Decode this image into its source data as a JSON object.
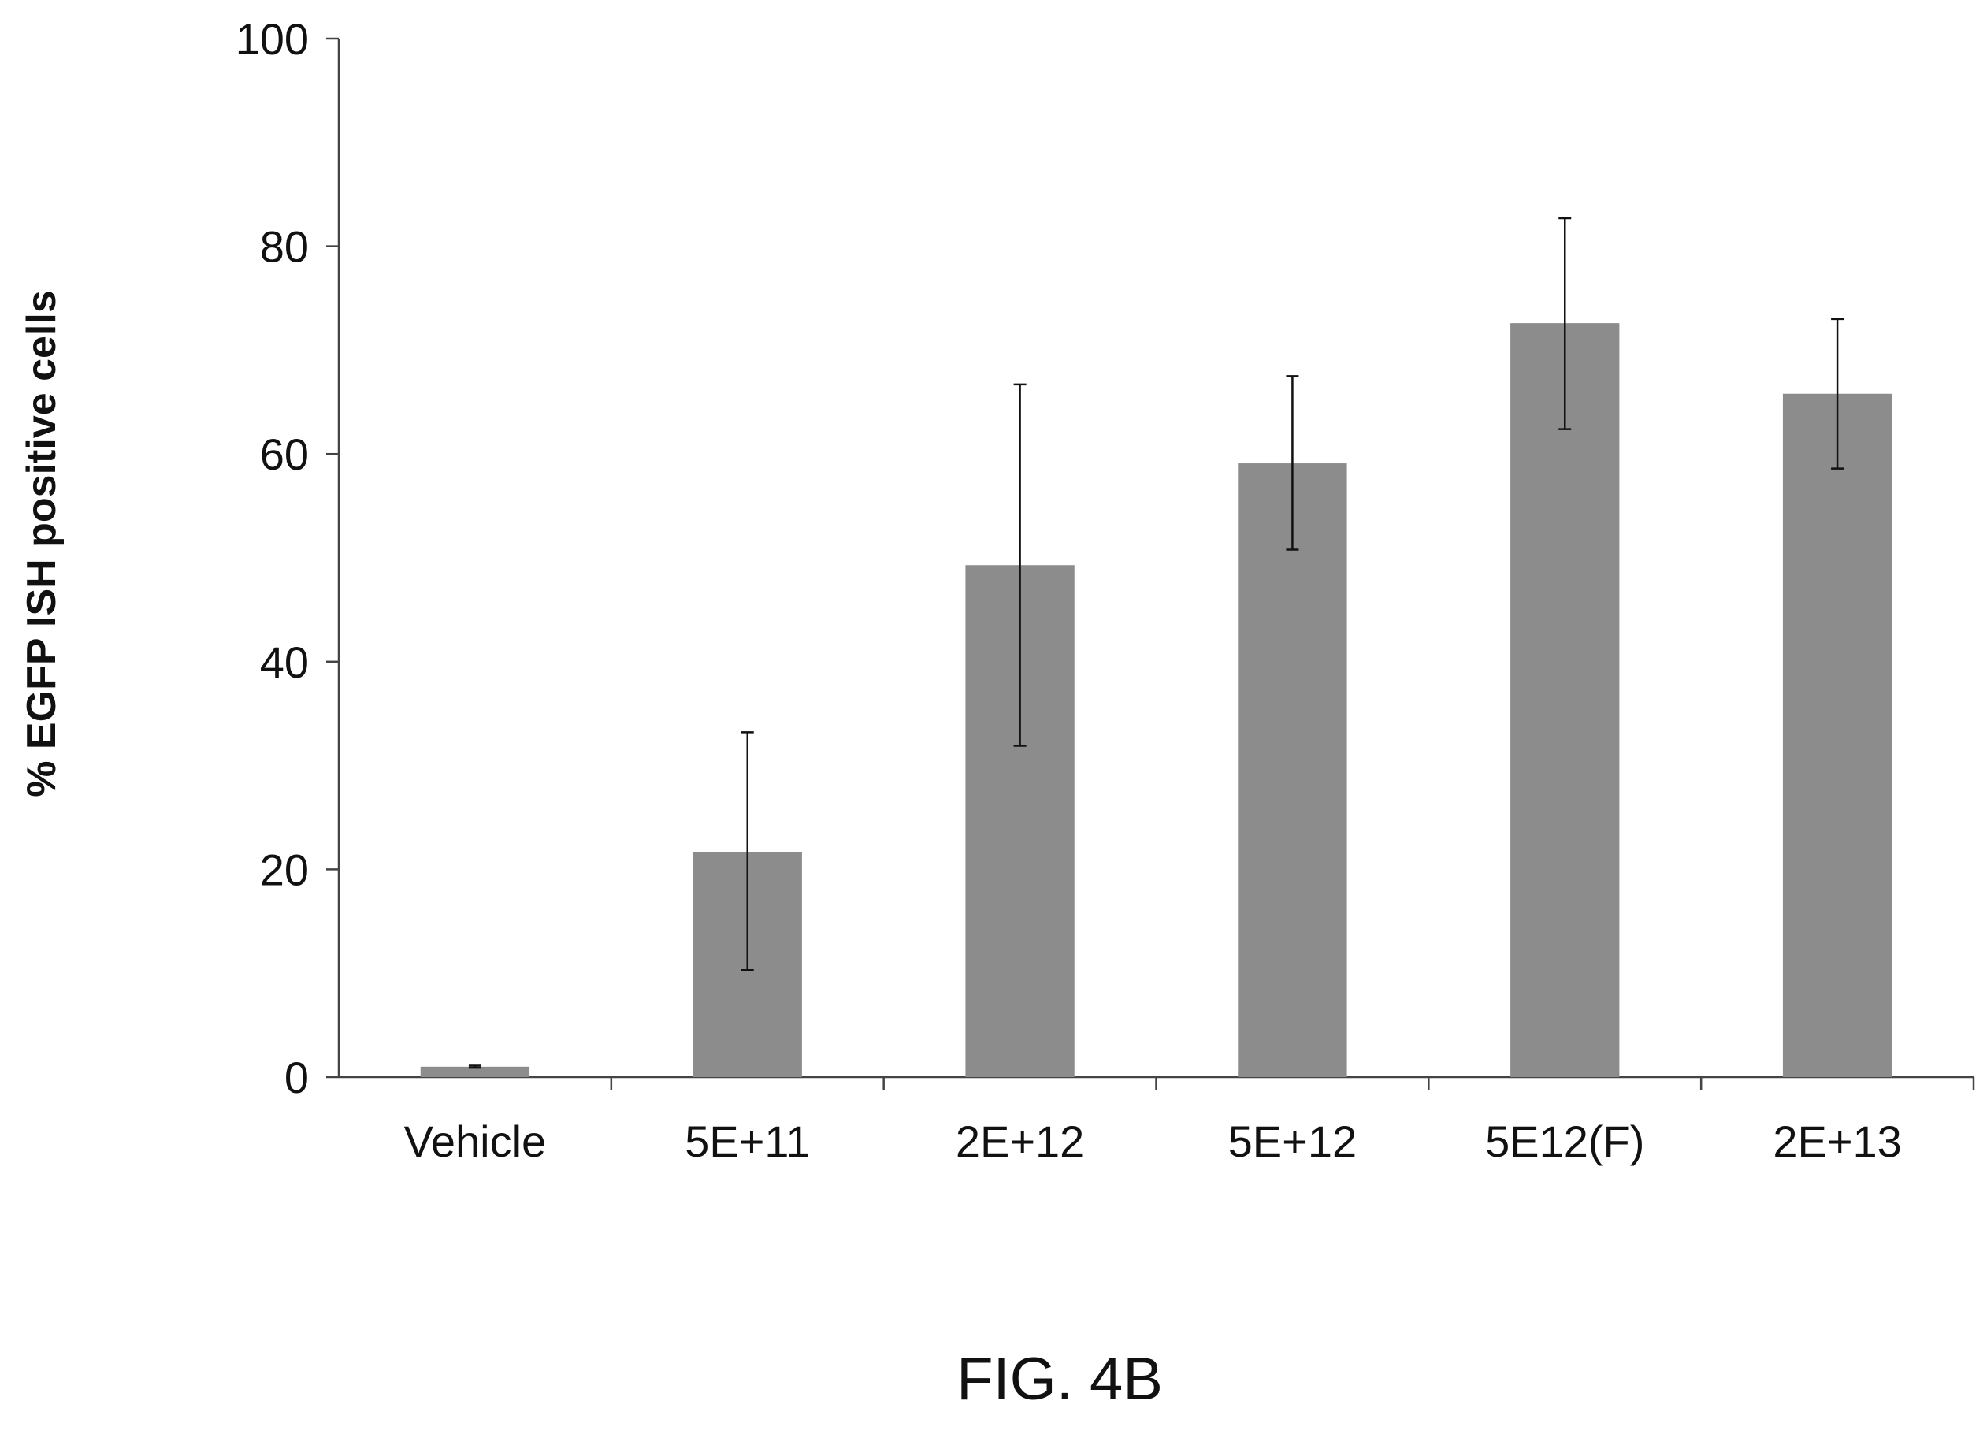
{
  "chart_data": {
    "type": "bar",
    "ylabel": "% EGFP ISH positive cells",
    "xlabel": "",
    "ylim": [
      0,
      100
    ],
    "yticks": [
      0,
      20,
      40,
      60,
      80,
      100
    ],
    "grid": false,
    "categories": [
      "Vehicle",
      "5E+11",
      "2E+12",
      "5E+12",
      "5E12(F)",
      "2E+13"
    ],
    "values": [
      1.0,
      21.7,
      49.3,
      59.1,
      72.6,
      65.8
    ],
    "error_low": [
      0.9,
      10.3,
      31.9,
      50.8,
      62.4,
      58.6
    ],
    "error_high": [
      1.1,
      33.2,
      66.7,
      67.5,
      82.7,
      73.0
    ],
    "bar_color": "#8c8c8c"
  },
  "caption": "FIG. 4B"
}
